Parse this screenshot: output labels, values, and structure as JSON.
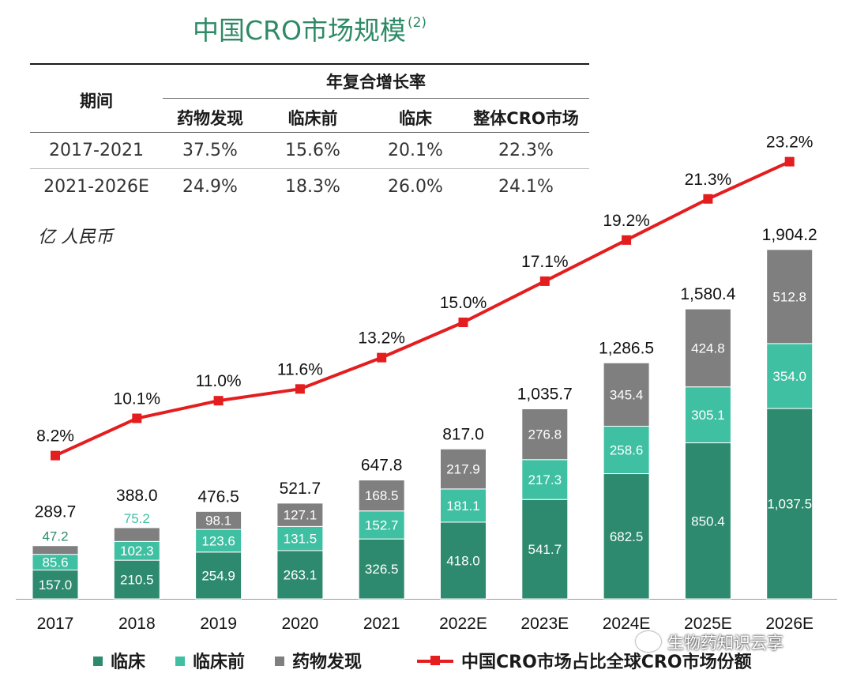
{
  "title": "中国CRO市场规模",
  "title_note": "(2)",
  "unit_label": "亿 人民币",
  "cagr_table": {
    "period_header": "期间",
    "group_header": "年复合增长率",
    "columns": [
      "药物发现",
      "临床前",
      "临床",
      "整体CRO市场"
    ],
    "rows": [
      {
        "period": "2017-2021",
        "values": [
          "37.5%",
          "15.6%",
          "20.1%",
          "22.3%"
        ]
      },
      {
        "period": "2021-2026E",
        "values": [
          "24.9%",
          "18.3%",
          "26.0%",
          "24.1%"
        ]
      }
    ]
  },
  "chart_data": {
    "type": "bar",
    "stacked": true,
    "categories": [
      "2017",
      "2018",
      "2019",
      "2020",
      "2021",
      "2022E",
      "2023E",
      "2024E",
      "2025E",
      "2026E"
    ],
    "series": [
      {
        "name": "临床",
        "color": "#2e8a6e",
        "values": [
          157.0,
          210.5,
          254.9,
          263.1,
          326.5,
          418.0,
          541.7,
          682.5,
          850.4,
          1037.5
        ],
        "labels": [
          "157.0",
          "210.5",
          "254.9",
          "263.1",
          "326.5",
          "418.0",
          "541.7",
          "682.5",
          "850.4",
          "1,037.5"
        ]
      },
      {
        "name": "临床前",
        "color": "#3fc0a2",
        "values": [
          85.6,
          102.3,
          123.6,
          131.5,
          152.7,
          181.1,
          217.3,
          258.6,
          305.1,
          354.0
        ],
        "labels": [
          "85.6",
          "102.3",
          "123.6",
          "131.5",
          "152.7",
          "181.1",
          "217.3",
          "258.6",
          "305.1",
          "354.0"
        ]
      },
      {
        "name": "药物发现",
        "color": "#7f7f7f",
        "values": [
          47.2,
          75.2,
          98.1,
          127.1,
          168.5,
          217.9,
          276.8,
          345.4,
          424.8,
          512.8
        ],
        "labels": [
          "47.2",
          "75.2",
          "98.1",
          "127.1",
          "168.5",
          "217.9",
          "276.8",
          "345.4",
          "424.8",
          "512.8"
        ]
      }
    ],
    "totals": [
      289.7,
      388.0,
      476.5,
      521.7,
      647.8,
      817.0,
      1035.7,
      1286.5,
      1580.4,
      1904.2
    ],
    "total_labels": [
      "289.7",
      "388.0",
      "476.5",
      "521.7",
      "647.8",
      "817.0",
      "1,035.7",
      "1,286.5",
      "1,580.4",
      "1,904.2"
    ],
    "line_series": {
      "name": "中国CRO市场占比全球CRO市场份额",
      "color": "#e41d1f",
      "values": [
        8.2,
        10.1,
        11.0,
        11.6,
        13.2,
        15.0,
        17.1,
        19.2,
        21.3,
        23.2
      ],
      "labels": [
        "8.2%",
        "10.1%",
        "11.0%",
        "11.6%",
        "13.2%",
        "15.0%",
        "17.1%",
        "19.2%",
        "21.3%",
        "23.2%"
      ],
      "ylim": [
        0,
        25
      ]
    },
    "ylim": [
      0,
      2000
    ],
    "legend_position": "bottom"
  },
  "legend": {
    "clinical": "临床",
    "preclinical": "临床前",
    "discovery": "药物发现",
    "share": "中国CRO市场占比全球CRO市场份额"
  },
  "watermark": "生物药知识云享"
}
